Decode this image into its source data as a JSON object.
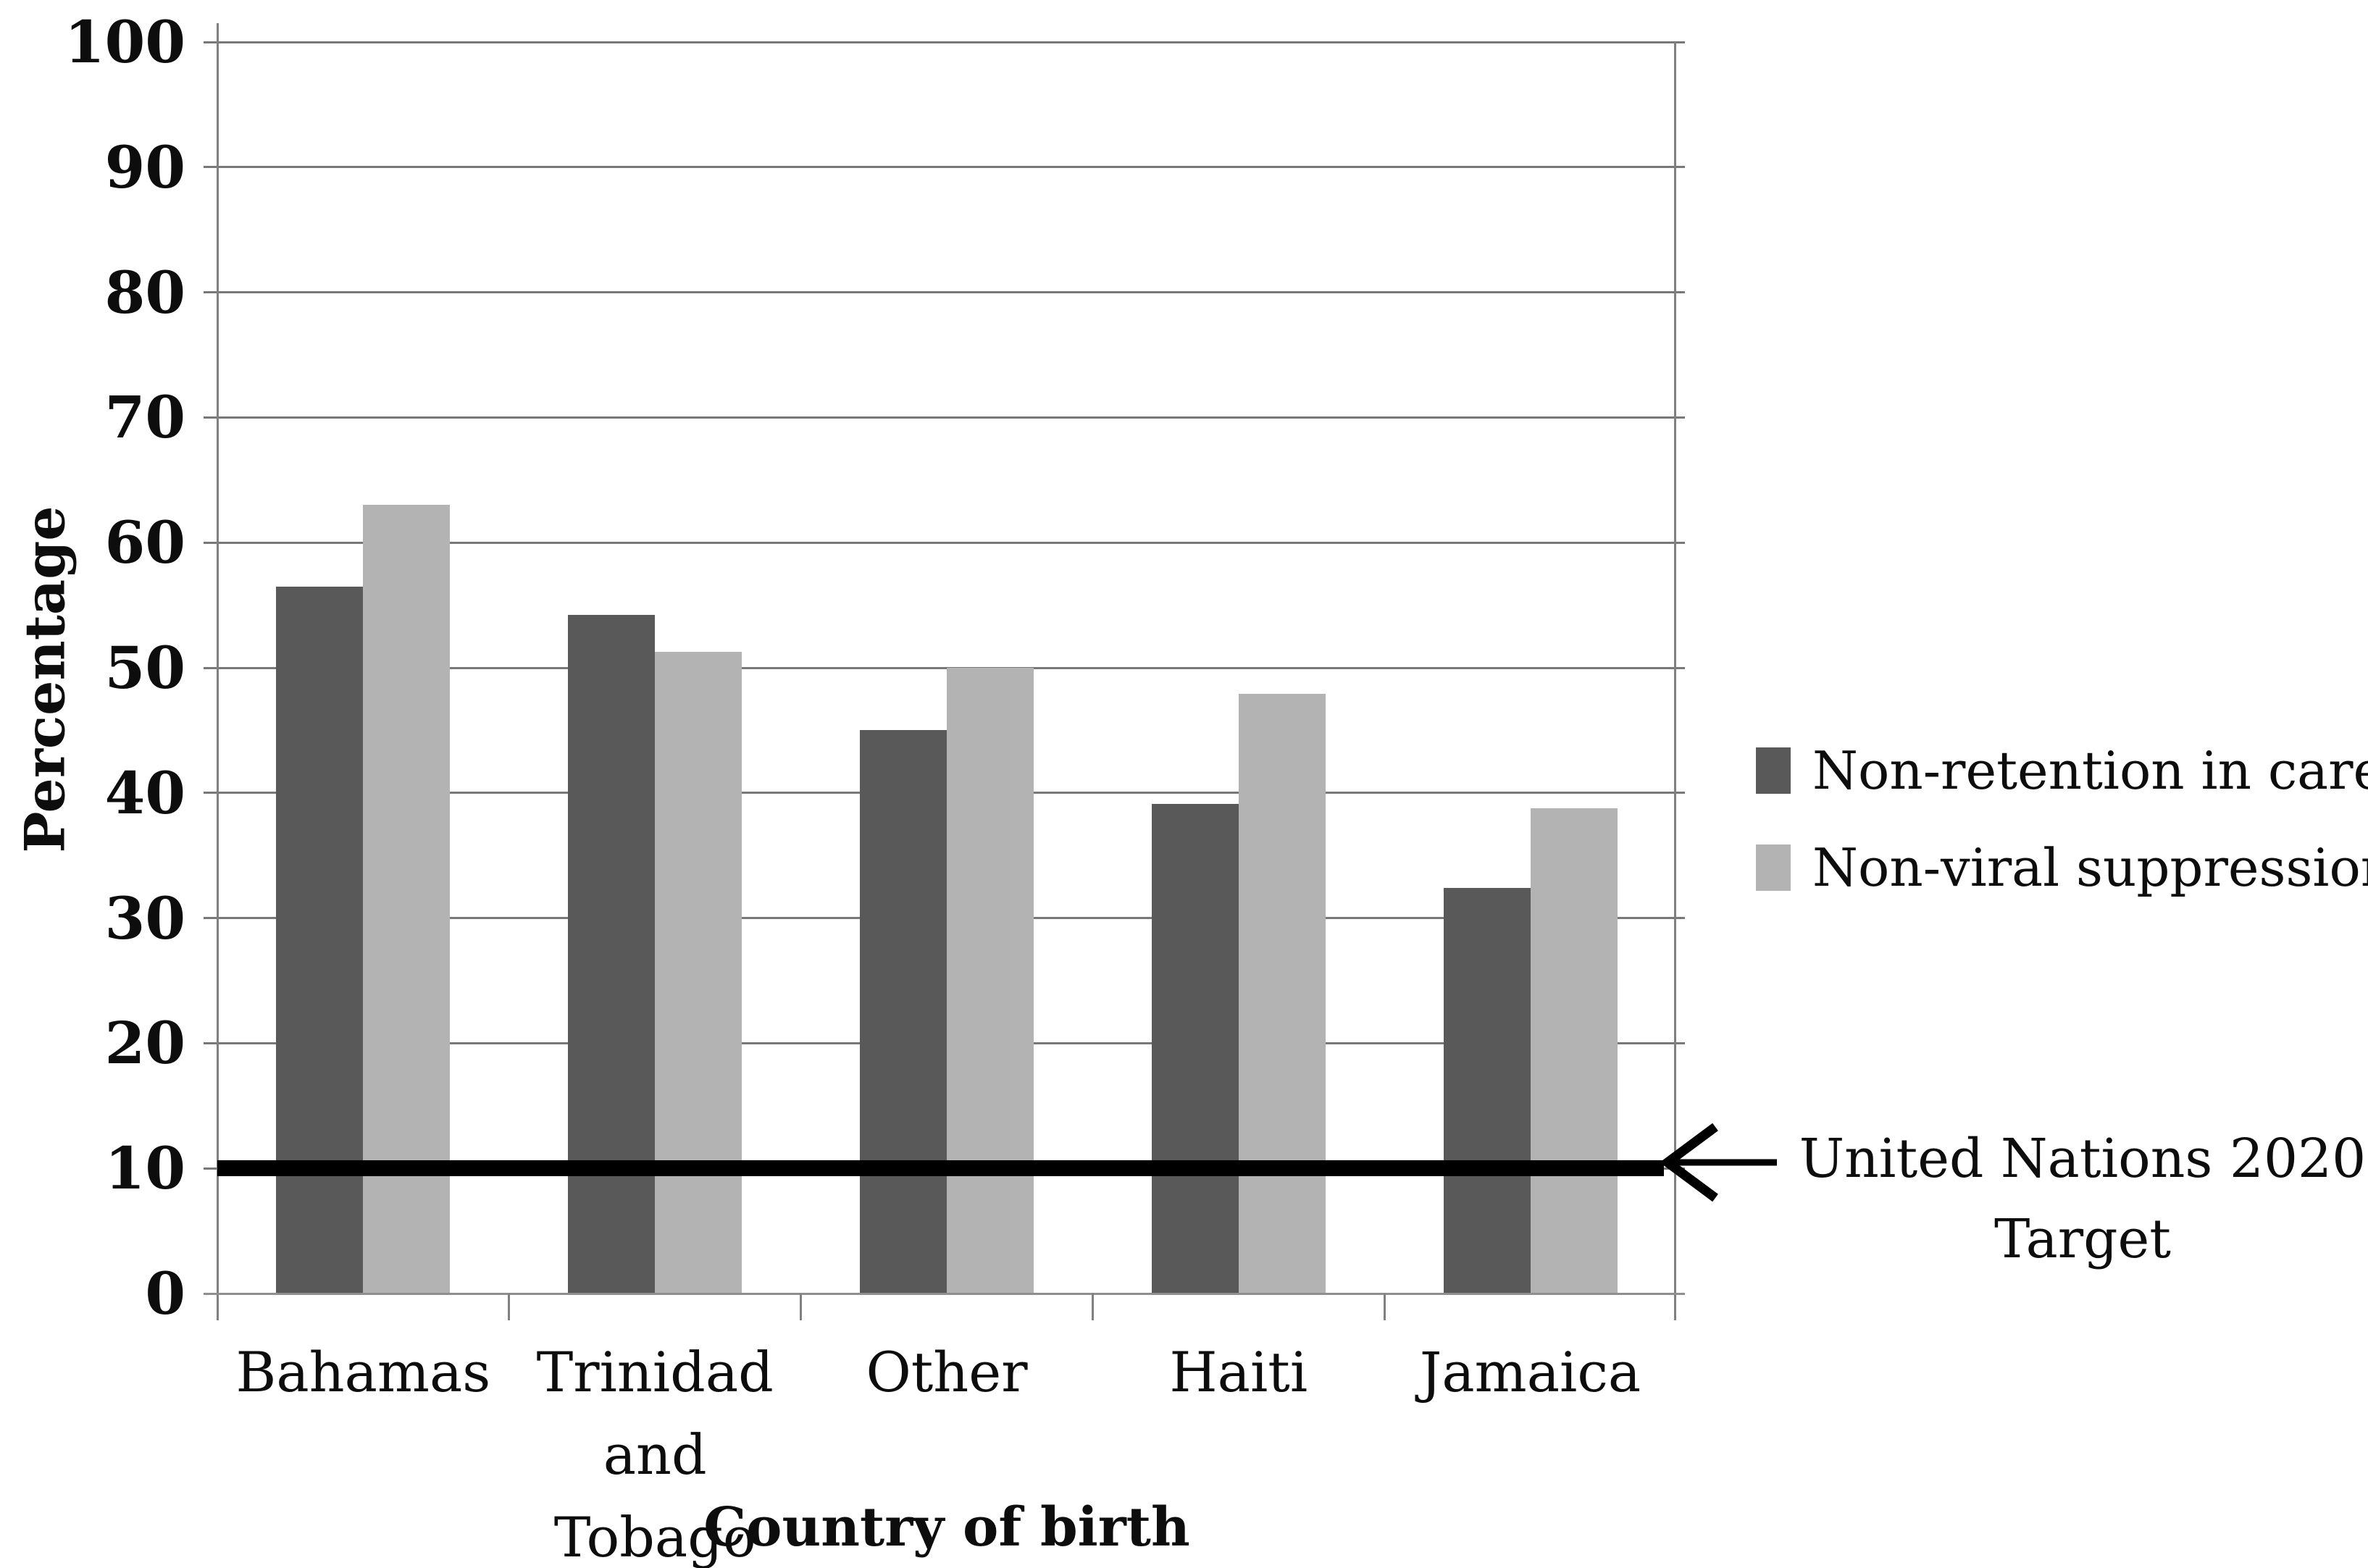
{
  "chart_data": {
    "type": "bar",
    "title": "",
    "xlabel": "Country of birth",
    "ylabel": "Percentage",
    "categories": [
      "Bahamas",
      "Trinidad\nand Tobago",
      "Other",
      "Haiti",
      "Jamaica"
    ],
    "series": [
      {
        "name": "Non-retention in care",
        "color": "#595959",
        "values": [
          56.5,
          54.2,
          45.0,
          39.1,
          32.4
        ]
      },
      {
        "name": "Non-viral suppression",
        "color": "#b3b3b3",
        "values": [
          63.0,
          51.3,
          50.0,
          47.9,
          38.8
        ]
      }
    ],
    "ylim": [
      0,
      100
    ],
    "ytick_step": 10,
    "grid": "horizontal",
    "legend_position": "right",
    "target_line": {
      "value": 10,
      "label": "United Nations 2020\nTarget",
      "color": "#000000"
    }
  },
  "colors": {
    "bar_dark": "#595959",
    "bar_light": "#b3b3b3",
    "gridline": "#787878",
    "axis": "#808080",
    "target_line": "#000000",
    "text": "#0d0d0d"
  }
}
